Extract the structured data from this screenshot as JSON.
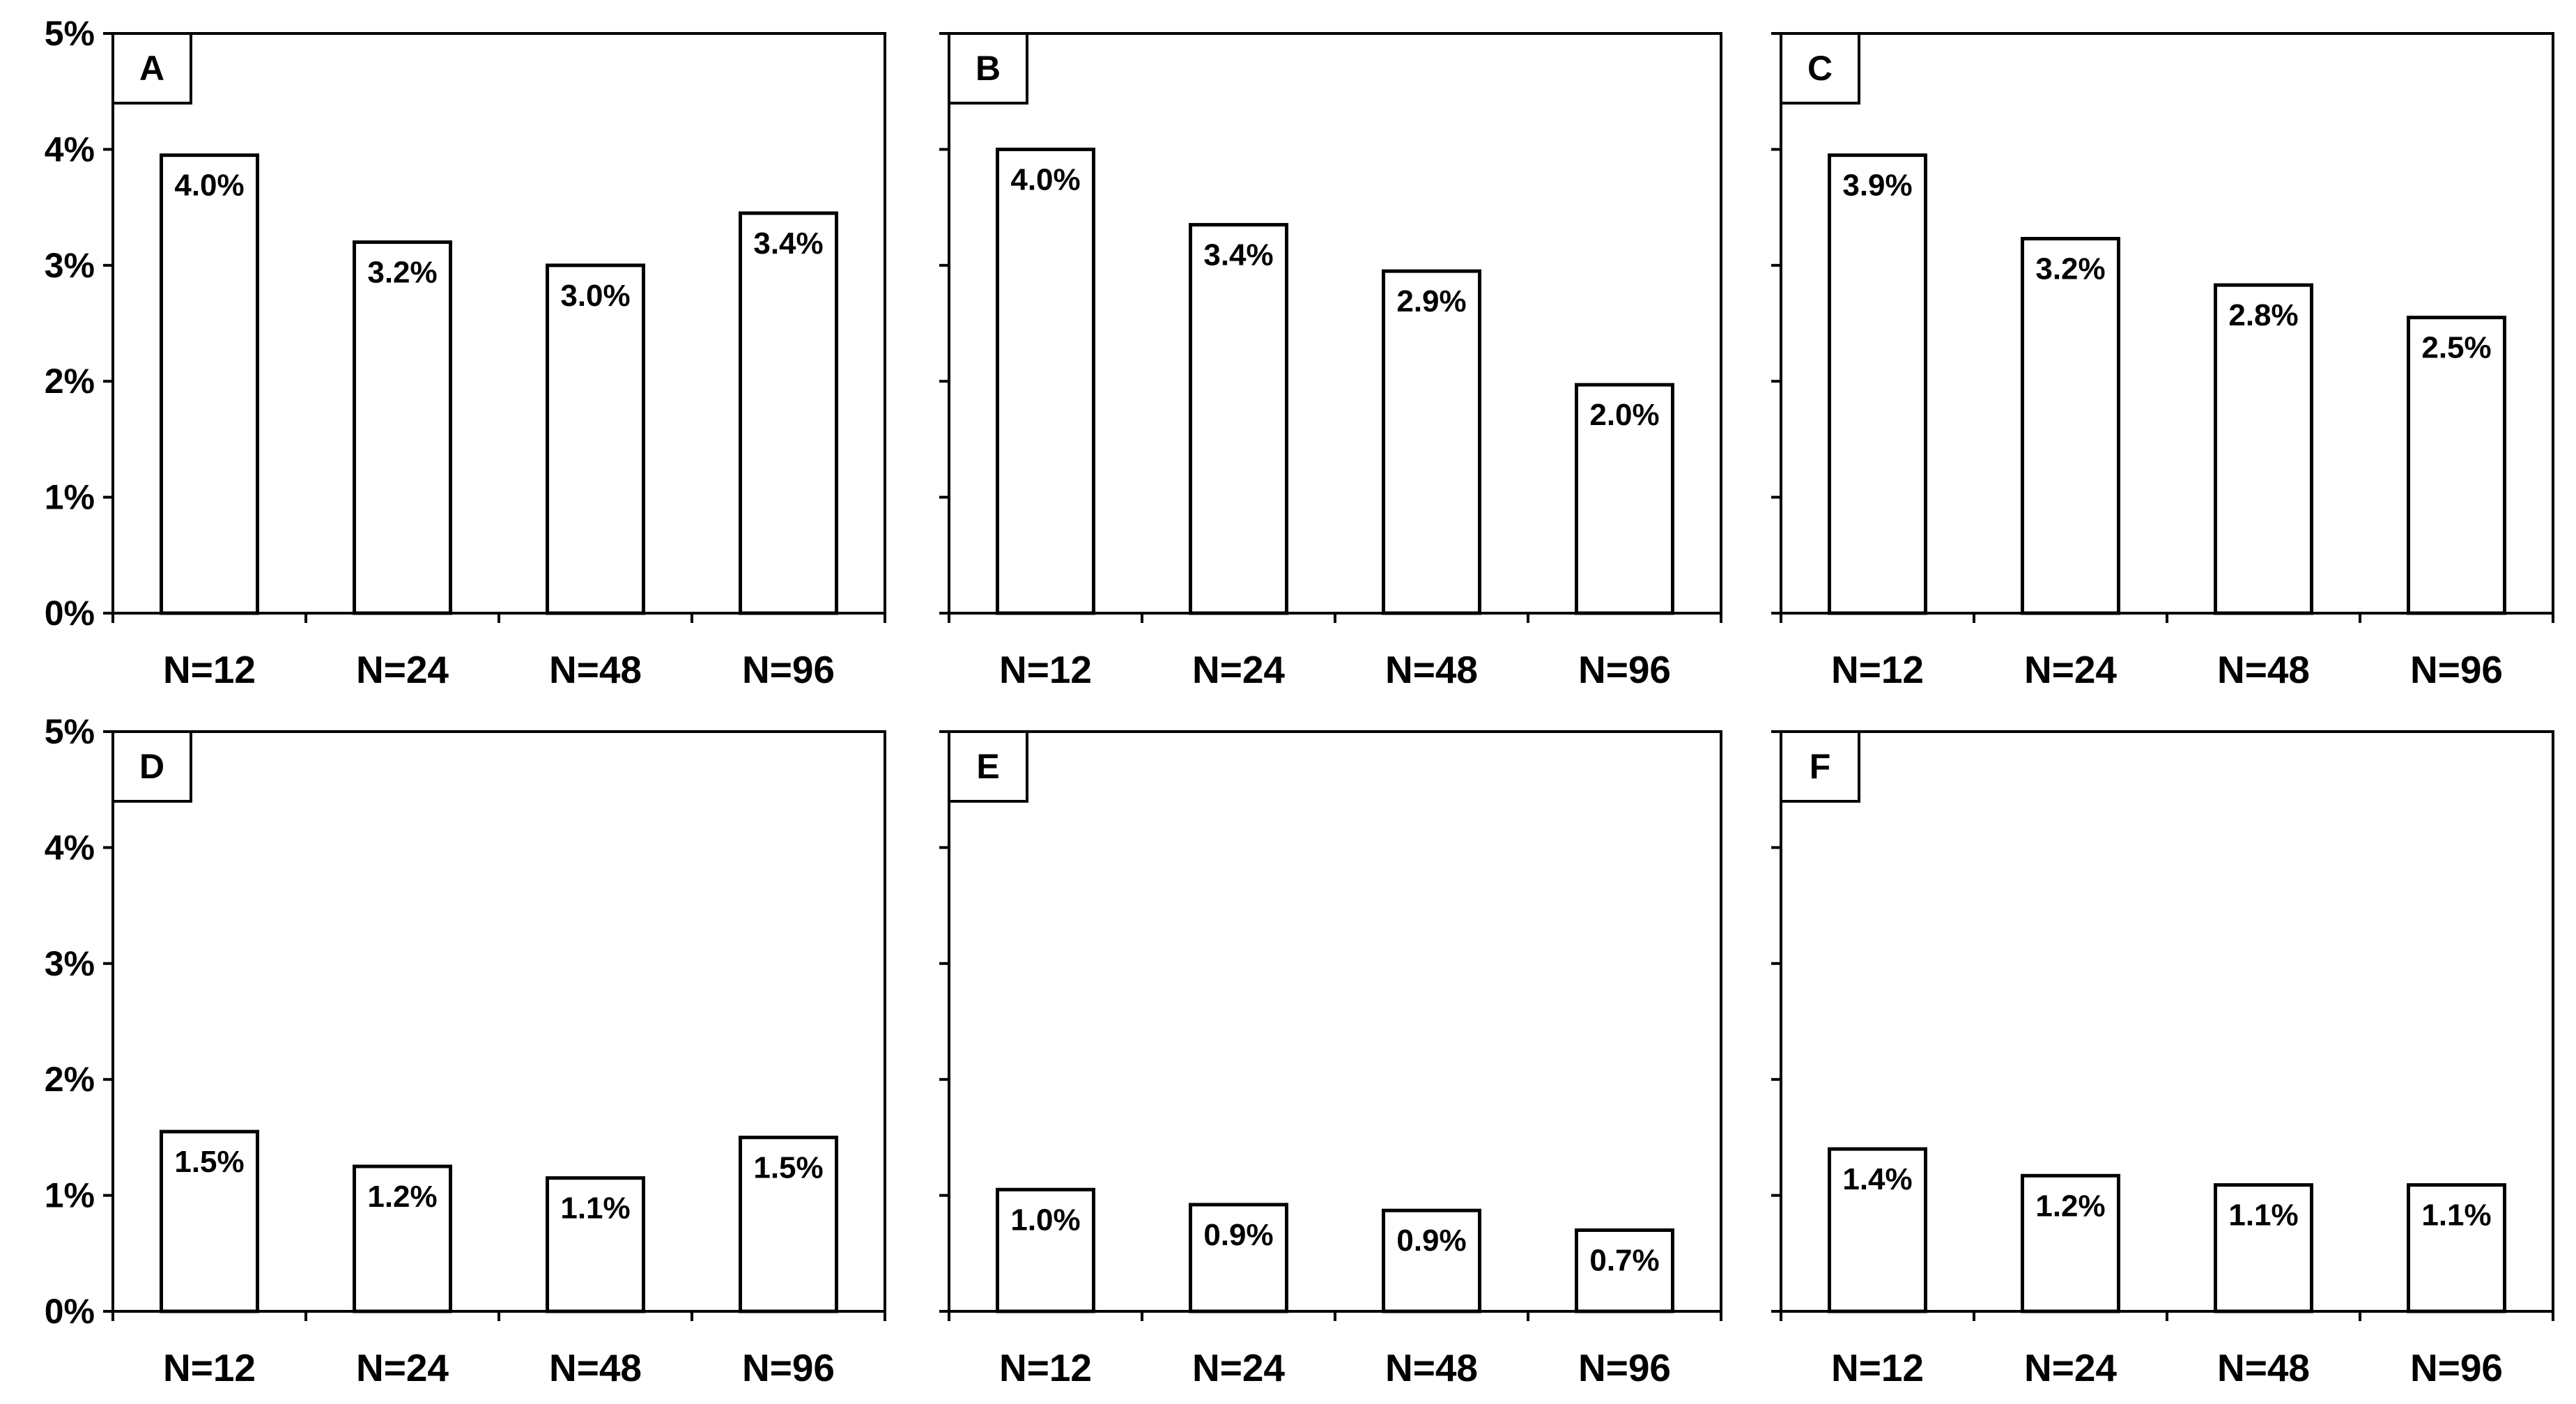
{
  "chart_data": [
    {
      "type": "bar",
      "panel_label": "A",
      "categories": [
        "N=12",
        "N=24",
        "N=48",
        "N=96"
      ],
      "values": [
        3.95,
        3.2,
        3.0,
        3.45
      ],
      "value_labels": [
        "4.0%",
        "3.2%",
        "3.0%",
        "3.4%"
      ],
      "ylim": [
        0,
        5
      ],
      "yticks": [
        "0%",
        "1%",
        "2%",
        "3%",
        "4%",
        "5%"
      ]
    },
    {
      "type": "bar",
      "panel_label": "B",
      "categories": [
        "N=12",
        "N=24",
        "N=48",
        "N=96"
      ],
      "values": [
        4.0,
        3.35,
        2.95,
        1.97
      ],
      "value_labels": [
        "4.0%",
        "3.4%",
        "2.9%",
        "2.0%"
      ],
      "ylim": [
        0,
        5
      ],
      "yticks": []
    },
    {
      "type": "bar",
      "panel_label": "C",
      "categories": [
        "N=12",
        "N=24",
        "N=48",
        "N=96"
      ],
      "values": [
        3.95,
        3.23,
        2.83,
        2.55
      ],
      "value_labels": [
        "3.9%",
        "3.2%",
        "2.8%",
        "2.5%"
      ],
      "ylim": [
        0,
        5
      ],
      "yticks": []
    },
    {
      "type": "bar",
      "panel_label": "D",
      "categories": [
        "N=12",
        "N=24",
        "N=48",
        "N=96"
      ],
      "values": [
        1.55,
        1.25,
        1.15,
        1.5
      ],
      "value_labels": [
        "1.5%",
        "1.2%",
        "1.1%",
        "1.5%"
      ],
      "ylim": [
        0,
        5
      ],
      "yticks": [
        "0%",
        "1%",
        "2%",
        "3%",
        "4%",
        "5%"
      ]
    },
    {
      "type": "bar",
      "panel_label": "E",
      "categories": [
        "N=12",
        "N=24",
        "N=48",
        "N=96"
      ],
      "values": [
        1.05,
        0.92,
        0.87,
        0.7
      ],
      "value_labels": [
        "1.0%",
        "0.9%",
        "0.9%",
        "0.7%"
      ],
      "ylim": [
        0,
        5
      ],
      "yticks": []
    },
    {
      "type": "bar",
      "panel_label": "F",
      "categories": [
        "N=12",
        "N=24",
        "N=48",
        "N=96"
      ],
      "values": [
        1.4,
        1.17,
        1.09,
        1.09
      ],
      "value_labels": [
        "1.4%",
        "1.2%",
        "1.1%",
        "1.1%"
      ],
      "ylim": [
        0,
        5
      ],
      "yticks": []
    }
  ]
}
